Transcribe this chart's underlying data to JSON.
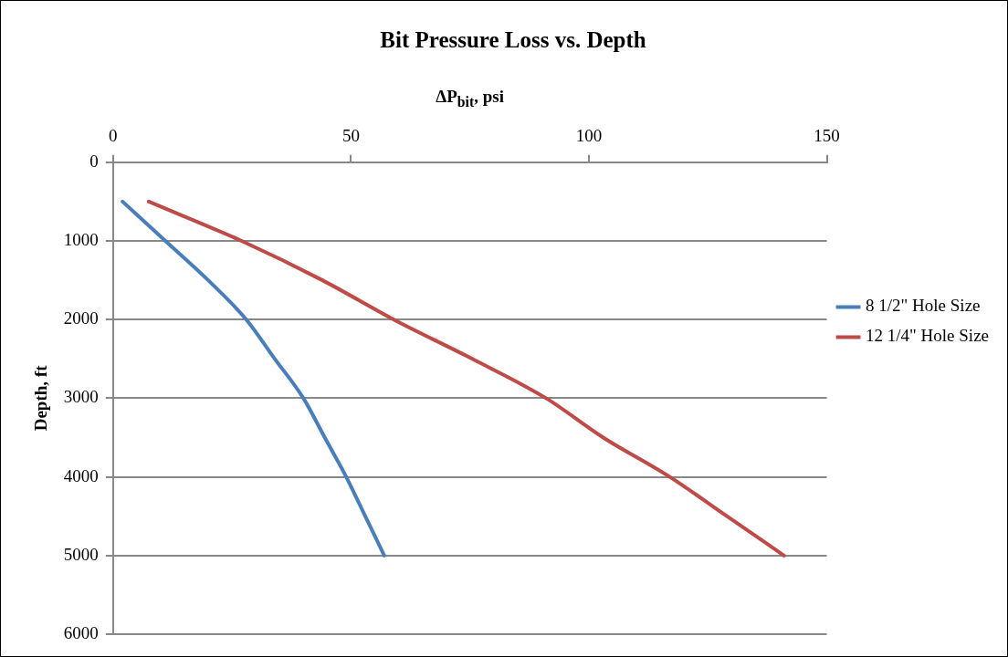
{
  "chart_data": {
    "type": "line",
    "title": "Bit Pressure Loss vs. Depth",
    "xlabel": "ΔP$_{bit}$, psi",
    "ylabel": "Depth, ft",
    "series": [
      {
        "name": "8 1/2\" Hole Size",
        "color": "#4a7ebb",
        "x": [
          2,
          11,
          20,
          28,
          34,
          40,
          44.5,
          49,
          53,
          57
        ],
        "values": [
          500,
          1000,
          1500,
          2000,
          2500,
          3000,
          3500,
          4000,
          4500,
          5000
        ]
      },
      {
        "name": "12 1/4\" Hole Size",
        "color": "#be4b48",
        "x": [
          7.5,
          27,
          44,
          59,
          75.5,
          91,
          103,
          117,
          129,
          141
        ],
        "values": [
          500,
          1000,
          1500,
          2000,
          2500,
          3000,
          3500,
          4000,
          4500,
          5000
        ]
      }
    ],
    "xlim": [
      0,
      150
    ],
    "xticks": [
      0,
      50,
      100,
      150
    ],
    "ylim": [
      6000,
      0
    ],
    "yticks": [
      0,
      1000,
      2000,
      3000,
      4000,
      5000,
      6000
    ],
    "grid": "y",
    "legend": "right",
    "marker": "none",
    "line_style": "solid"
  }
}
